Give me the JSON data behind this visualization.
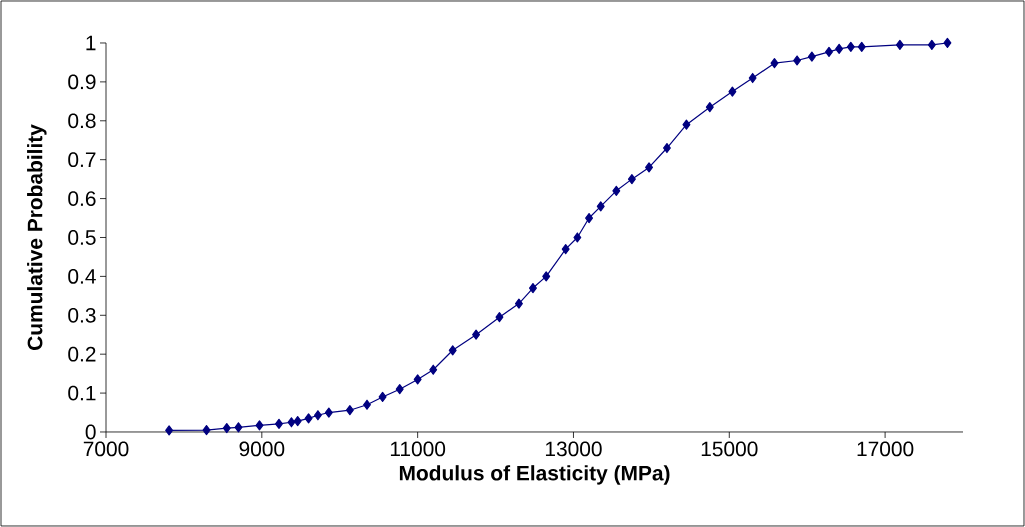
{
  "chart_data": {
    "type": "line",
    "xlabel": "Modulus of Elasticity (MPa)",
    "ylabel": "Cumulative Probability",
    "x": [
      7810,
      8290,
      8550,
      8700,
      8970,
      9220,
      9380,
      9460,
      9600,
      9720,
      9860,
      10130,
      10350,
      10550,
      10770,
      11000,
      11200,
      11450,
      11750,
      12050,
      12300,
      12480,
      12650,
      12900,
      13050,
      13200,
      13350,
      13550,
      13750,
      13970,
      14200,
      14450,
      14750,
      15040,
      15300,
      15580,
      15870,
      16060,
      16280,
      16410,
      16560,
      16700,
      17190,
      17600,
      17800
    ],
    "series": [
      {
        "color": "#000080",
        "values": [
          0.004,
          0.005,
          0.01,
          0.012,
          0.017,
          0.021,
          0.025,
          0.028,
          0.035,
          0.043,
          0.05,
          0.056,
          0.07,
          0.09,
          0.11,
          0.135,
          0.16,
          0.21,
          0.25,
          0.295,
          0.33,
          0.37,
          0.4,
          0.47,
          0.5,
          0.55,
          0.58,
          0.62,
          0.65,
          0.68,
          0.73,
          0.79,
          0.835,
          0.875,
          0.91,
          0.948,
          0.955,
          0.965,
          0.977,
          0.985,
          0.99,
          0.99,
          0.995,
          0.995,
          1.0
        ]
      }
    ],
    "xlim": [
      7000,
      18000
    ],
    "ylim": [
      0,
      1
    ],
    "xticks": [
      7000,
      9000,
      11000,
      13000,
      15000,
      17000
    ],
    "yticks": [
      0,
      0.1,
      0.2,
      0.3,
      0.4,
      0.5,
      0.6,
      0.7,
      0.8,
      0.9,
      1
    ],
    "marker": "diamond",
    "line_style": "solid",
    "grid": false
  }
}
